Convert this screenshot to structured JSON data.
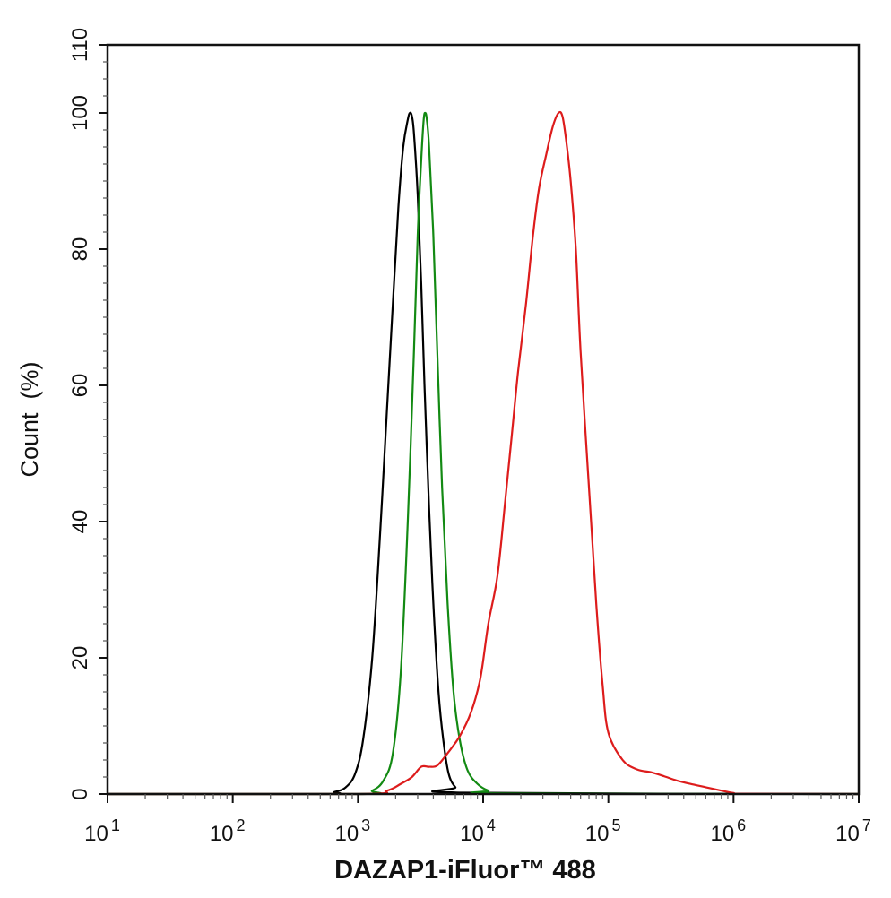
{
  "chart_data": {
    "type": "line",
    "x_scale": "log",
    "xlim": [
      10,
      10000000
    ],
    "ylim": [
      0,
      110
    ],
    "xlabel": "DAZAP1-iFluor™ 488",
    "ylabel": "Count  (%)",
    "y_ticks": [
      0,
      20,
      40,
      60,
      80,
      100,
      110
    ],
    "y_tick_labels": [
      "0",
      "20",
      "40",
      "60",
      "80",
      "100",
      "110"
    ],
    "x_ticks": [
      {
        "value": 10,
        "base": "10",
        "exp": "1"
      },
      {
        "value": 100,
        "base": "10",
        "exp": "2"
      },
      {
        "value": 1000,
        "base": "10",
        "exp": "3"
      },
      {
        "value": 10000,
        "base": "10",
        "exp": "4"
      },
      {
        "value": 100000,
        "base": "10",
        "exp": "5"
      },
      {
        "value": 1000000,
        "base": "10",
        "exp": "6"
      },
      {
        "value": 10000000,
        "base": "10",
        "exp": "7"
      }
    ],
    "grid": false,
    "legend": "none",
    "series": [
      {
        "color": "#000000",
        "x": [
          10,
          500,
          650,
          800,
          950,
          1100,
          1300,
          1500,
          1700,
          1900,
          2100,
          2300,
          2500,
          2600,
          2700,
          2800,
          3000,
          3200,
          3400,
          3700,
          4000,
          4400,
          4800,
          5300,
          6000,
          7000,
          10000000
        ],
        "values": [
          0,
          0,
          0.3,
          1,
          3,
          8,
          20,
          38,
          56,
          72,
          86,
          95,
          99,
          100,
          99.5,
          97,
          88,
          75,
          60,
          42,
          28,
          15,
          8,
          3,
          1,
          0.2,
          0
        ]
      },
      {
        "color": "#138a13",
        "x": [
          10,
          1000,
          1300,
          1600,
          1900,
          2200,
          2500,
          2800,
          3000,
          3200,
          3350,
          3450,
          3550,
          3700,
          4000,
          4300,
          4700,
          5200,
          5800,
          6500,
          7500,
          9000,
          11000,
          14000,
          10000000
        ],
        "values": [
          0,
          0,
          0.5,
          2,
          6,
          18,
          40,
          65,
          82,
          93,
          99,
          100,
          99,
          95,
          82,
          65,
          45,
          28,
          15,
          8,
          3.5,
          1.5,
          0.5,
          0.1,
          0
        ]
      },
      {
        "color": "#dd1c1c",
        "x": [
          10,
          1000,
          1700,
          2200,
          2700,
          3200,
          3700,
          4300,
          5200,
          6500,
          8000,
          9500,
          11000,
          13000,
          15000,
          17000,
          19000,
          22000,
          25000,
          28000,
          32000,
          36000,
          40000,
          43000,
          46000,
          50000,
          55000,
          60000,
          70000,
          80000,
          90000,
          100000,
          130000,
          170000,
          220000,
          280000,
          350000,
          450000,
          600000,
          800000,
          1000000,
          1200000,
          10000000
        ],
        "values": [
          0,
          0,
          0.5,
          1.5,
          2.5,
          4,
          4,
          4.2,
          6,
          8.5,
          12,
          17,
          25,
          32,
          43,
          53,
          62,
          72,
          82,
          89,
          94,
          98,
          100,
          99.5,
          96,
          90,
          80,
          65,
          45,
          28,
          16,
          9,
          5,
          3.6,
          3.2,
          2.6,
          2,
          1.5,
          1,
          0.5,
          0.15,
          0.05,
          0
        ]
      }
    ]
  }
}
